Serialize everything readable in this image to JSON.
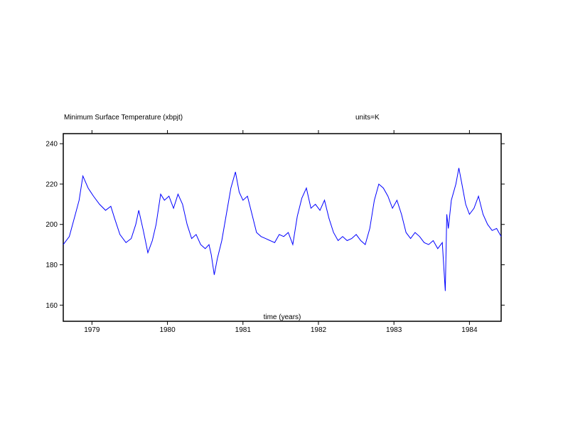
{
  "chart_data": {
    "type": "line",
    "title": "Minimum Surface Temperature (xbpjt)",
    "units_label": "units=K",
    "xlabel": "time (years)",
    "ylabel": "",
    "xlim": [
      1978.62,
      1984.42
    ],
    "ylim": [
      152,
      245
    ],
    "y_ticks": [
      160,
      180,
      200,
      220,
      240
    ],
    "x_ticks": [
      1979,
      1980,
      1981,
      1982,
      1983,
      1984
    ],
    "x_tick_labels": [
      "1979",
      "1980",
      "1981",
      "1982",
      "1983",
      "1984"
    ],
    "y_tick_labels": [
      "160",
      "180",
      "200",
      "220",
      "240"
    ],
    "grid": false,
    "series": [
      {
        "color": "#0000ff",
        "x": [
          1978.62,
          1978.7,
          1978.78,
          1978.83,
          1978.88,
          1978.95,
          1979.02,
          1979.1,
          1979.18,
          1979.25,
          1979.3,
          1979.37,
          1979.45,
          1979.52,
          1979.58,
          1979.62,
          1979.68,
          1979.74,
          1979.8,
          1979.85,
          1979.91,
          1979.96,
          1980.02,
          1980.08,
          1980.14,
          1980.2,
          1980.26,
          1980.32,
          1980.38,
          1980.44,
          1980.5,
          1980.55,
          1980.58,
          1980.62,
          1980.66,
          1980.72,
          1980.78,
          1980.84,
          1980.9,
          1980.95,
          1981.0,
          1981.06,
          1981.12,
          1981.18,
          1981.24,
          1981.3,
          1981.36,
          1981.42,
          1981.48,
          1981.54,
          1981.6,
          1981.66,
          1981.72,
          1981.78,
          1981.84,
          1981.9,
          1981.96,
          1982.02,
          1982.08,
          1982.14,
          1982.2,
          1982.26,
          1982.32,
          1982.38,
          1982.44,
          1982.5,
          1982.56,
          1982.62,
          1982.68,
          1982.74,
          1982.8,
          1982.86,
          1982.92,
          1982.98,
          1983.04,
          1983.1,
          1983.16,
          1983.22,
          1983.28,
          1983.34,
          1983.4,
          1983.46,
          1983.52,
          1983.58,
          1983.64,
          1983.68,
          1983.7,
          1983.72,
          1983.76,
          1983.82,
          1983.86,
          1983.9,
          1983.95,
          1984.0,
          1984.06,
          1984.12,
          1984.18,
          1984.24,
          1984.3,
          1984.36,
          1984.42
        ],
        "y": [
          190,
          194,
          205,
          212,
          224,
          218,
          214,
          210,
          207,
          209,
          203,
          195,
          191,
          193,
          200,
          207,
          197,
          186,
          192,
          200,
          215,
          212,
          214,
          208,
          215,
          210,
          200,
          193,
          195,
          190,
          188,
          190,
          185,
          175,
          183,
          192,
          205,
          218,
          226,
          216,
          212,
          214,
          205,
          196,
          194,
          193,
          192,
          191,
          195,
          194,
          196,
          190,
          204,
          213,
          218,
          208,
          210,
          207,
          212,
          203,
          196,
          192,
          194,
          192,
          193,
          195,
          192,
          190,
          198,
          212,
          220,
          218,
          214,
          208,
          212,
          205,
          196,
          193,
          196,
          194,
          191,
          190,
          192,
          188,
          191,
          167,
          205,
          198,
          212,
          220,
          228,
          220,
          210,
          205,
          208,
          214,
          205,
          200,
          197,
          198,
          194
        ]
      }
    ]
  }
}
